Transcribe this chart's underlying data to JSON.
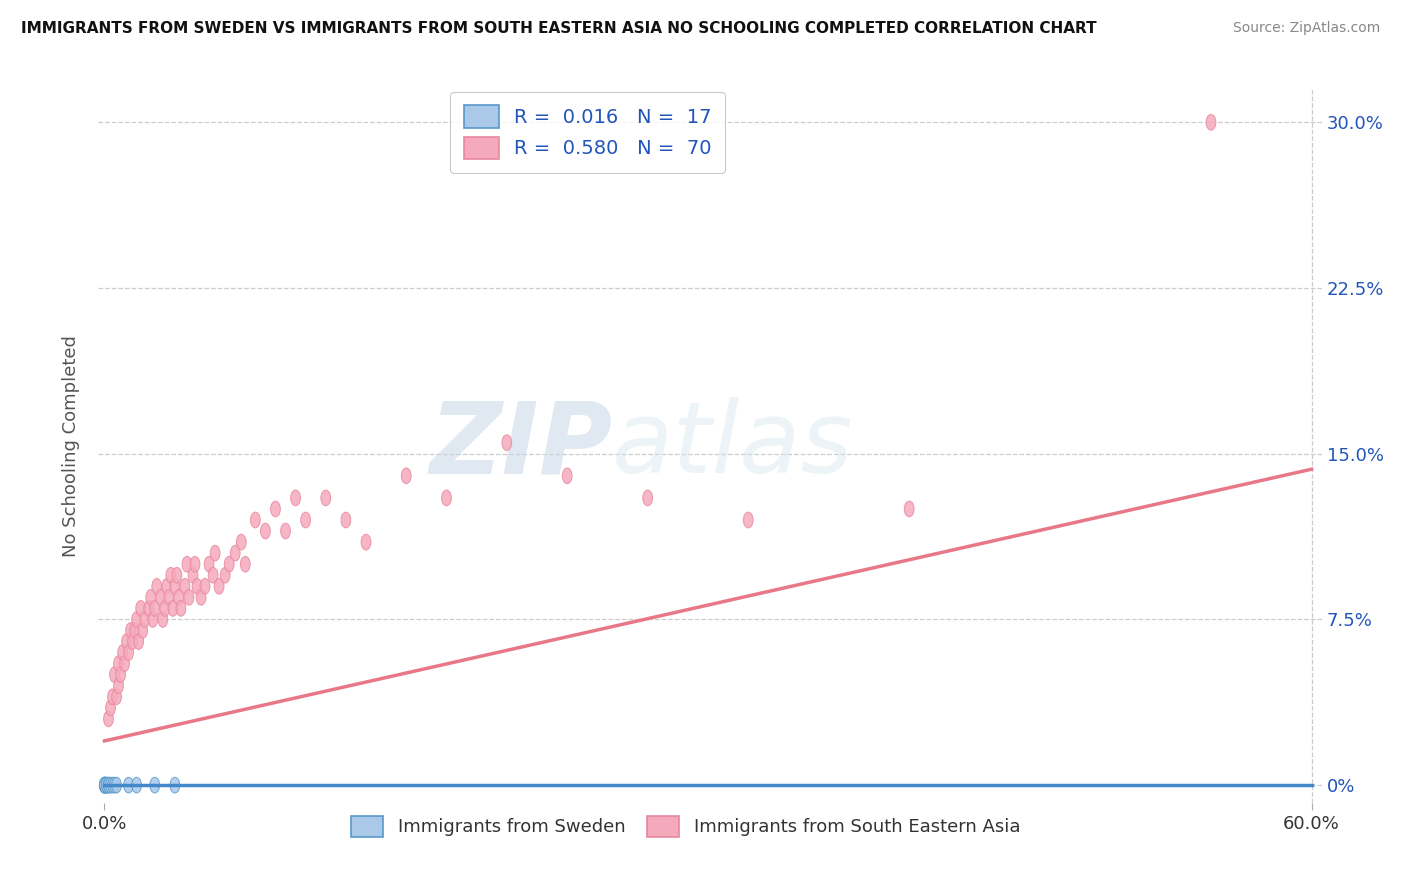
{
  "title": "IMMIGRANTS FROM SWEDEN VS IMMIGRANTS FROM SOUTH EASTERN ASIA NO SCHOOLING COMPLETED CORRELATION CHART",
  "source": "Source: ZipAtlas.com",
  "ylabel": "No Schooling Completed",
  "color_sweden": "#aac8e8",
  "color_sea": "#f5aabb",
  "color_sweden_edge": "#5599cc",
  "color_sea_edge": "#e888a0",
  "color_line_sweden": "#4488cc",
  "color_line_sea": "#e87888",
  "color_r_text": "#2255bb",
  "legend_r1": "0.016",
  "legend_n1": "17",
  "legend_r2": "0.580",
  "legend_n2": "70",
  "xlim": [
    -0.003,
    0.605
  ],
  "ylim": [
    -0.008,
    0.315
  ],
  "yticks": [
    0.0,
    0.075,
    0.15,
    0.225,
    0.3
  ],
  "ytick_labels": [
    "0%",
    "7.5%",
    "15.0%",
    "22.5%",
    "30.0%"
  ],
  "watermark_zip": "ZIP",
  "watermark_atlas": "atlas",
  "sweden_x": [
    0.0,
    0.0,
    0.0,
    0.0,
    0.0,
    0.001,
    0.001,
    0.002,
    0.002,
    0.003,
    0.004,
    0.005,
    0.006,
    0.012,
    0.016,
    0.025,
    0.035
  ],
  "sweden_y": [
    0.0,
    0.0,
    0.0,
    0.0,
    0.0,
    0.0,
    0.0,
    0.0,
    0.0,
    0.0,
    0.0,
    0.0,
    0.0,
    0.0,
    0.0,
    0.0,
    0.0
  ],
  "sea_x": [
    0.002,
    0.003,
    0.004,
    0.005,
    0.006,
    0.007,
    0.007,
    0.008,
    0.009,
    0.01,
    0.011,
    0.012,
    0.013,
    0.014,
    0.015,
    0.016,
    0.017,
    0.018,
    0.019,
    0.02,
    0.022,
    0.023,
    0.024,
    0.025,
    0.026,
    0.028,
    0.029,
    0.03,
    0.031,
    0.032,
    0.033,
    0.034,
    0.035,
    0.036,
    0.037,
    0.038,
    0.04,
    0.041,
    0.042,
    0.044,
    0.045,
    0.046,
    0.048,
    0.05,
    0.052,
    0.054,
    0.055,
    0.057,
    0.06,
    0.062,
    0.065,
    0.068,
    0.07,
    0.075,
    0.08,
    0.085,
    0.09,
    0.095,
    0.1,
    0.11,
    0.12,
    0.13,
    0.15,
    0.17,
    0.2,
    0.23,
    0.27,
    0.32,
    0.4,
    0.55
  ],
  "sea_y": [
    0.03,
    0.035,
    0.04,
    0.05,
    0.04,
    0.045,
    0.055,
    0.05,
    0.06,
    0.055,
    0.065,
    0.06,
    0.07,
    0.065,
    0.07,
    0.075,
    0.065,
    0.08,
    0.07,
    0.075,
    0.08,
    0.085,
    0.075,
    0.08,
    0.09,
    0.085,
    0.075,
    0.08,
    0.09,
    0.085,
    0.095,
    0.08,
    0.09,
    0.095,
    0.085,
    0.08,
    0.09,
    0.1,
    0.085,
    0.095,
    0.1,
    0.09,
    0.085,
    0.09,
    0.1,
    0.095,
    0.105,
    0.09,
    0.095,
    0.1,
    0.105,
    0.11,
    0.1,
    0.12,
    0.115,
    0.125,
    0.115,
    0.13,
    0.12,
    0.13,
    0.12,
    0.11,
    0.14,
    0.13,
    0.155,
    0.14,
    0.13,
    0.12,
    0.125,
    0.3
  ],
  "sea_line_x0": 0.0,
  "sea_line_y0": 0.02,
  "sea_line_x1": 0.6,
  "sea_line_y1": 0.143,
  "sweden_line_x0": 0.0,
  "sweden_line_y0": 0.0,
  "sweden_line_x1": 0.6,
  "sweden_line_y1": 0.0
}
